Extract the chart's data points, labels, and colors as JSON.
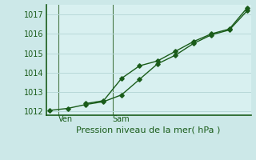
{
  "title": "Pression niveau de la mer( hPa )",
  "background_color": "#cce8e8",
  "plot_bg_color": "#d8f0f0",
  "grid_color": "#b8d8d8",
  "line_color": "#1a5c1a",
  "vline_color": "#4a7a4a",
  "ylim": [
    1011.8,
    1017.5
  ],
  "yticks": [
    1012,
    1013,
    1014,
    1015,
    1016,
    1017
  ],
  "x_ven_label": "Ven",
  "x_sam_label": "Sam",
  "series1_x": [
    0,
    1,
    2,
    3,
    4,
    5,
    6,
    7,
    8,
    9,
    10,
    11
  ],
  "series1_y": [
    1012.05,
    1012.15,
    1012.35,
    1012.5,
    1012.85,
    1013.65,
    1014.45,
    1014.9,
    1015.5,
    1015.95,
    1016.2,
    1017.2
  ],
  "series2_x": [
    2,
    3,
    4,
    5,
    6,
    7,
    8,
    9,
    10,
    11
  ],
  "series2_y": [
    1012.4,
    1012.55,
    1013.7,
    1014.35,
    1014.6,
    1015.1,
    1015.6,
    1016.0,
    1016.25,
    1017.35
  ],
  "ven_x": 0.5,
  "sam_x": 3.5,
  "xlim": [
    -0.2,
    11.2
  ],
  "ylabel_fontsize": 7,
  "xlabel_fontsize": 8
}
